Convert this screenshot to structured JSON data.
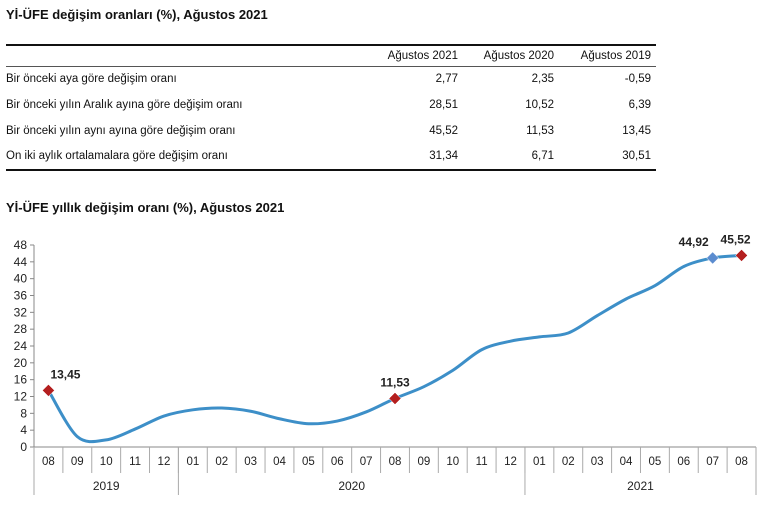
{
  "table": {
    "title": "Yİ-ÜFE değişim oranları (%), Ağustos 2021",
    "headers": [
      "Ağustos 2021",
      "Ağustos 2020",
      "Ağustos 2019"
    ],
    "rows": [
      {
        "label": "Bir önceki aya göre değişim oranı",
        "values": [
          "2,77",
          "2,35",
          "-0,59"
        ]
      },
      {
        "label": "Bir önceki yılın Aralık ayına göre değişim oranı",
        "values": [
          "28,51",
          "10,52",
          "6,39"
        ]
      },
      {
        "label": "Bir önceki yılın aynı ayına göre değişim oranı",
        "values": [
          "45,52",
          "11,53",
          "13,45"
        ]
      },
      {
        "label": "On iki aylık ortalamalara göre değişim oranı",
        "values": [
          "31,34",
          "6,71",
          "30,51"
        ]
      }
    ]
  },
  "chart_data": {
    "type": "line",
    "title": "Yİ-ÜFE yıllık değişim oranı (%), Ağustos 2021",
    "categories": [
      "08",
      "09",
      "10",
      "11",
      "12",
      "01",
      "02",
      "03",
      "04",
      "05",
      "06",
      "07",
      "08",
      "09",
      "10",
      "11",
      "12",
      "01",
      "02",
      "03",
      "04",
      "05",
      "06",
      "07",
      "08"
    ],
    "years": [
      {
        "label": "2019",
        "start": 0,
        "end": 4
      },
      {
        "label": "2020",
        "start": 5,
        "end": 16
      },
      {
        "label": "2021",
        "start": 17,
        "end": 24
      }
    ],
    "values": [
      13.45,
      2.46,
      1.7,
      4.26,
      7.36,
      8.84,
      9.26,
      8.5,
      6.71,
      5.53,
      6.17,
      8.33,
      11.53,
      14.33,
      18.2,
      23.11,
      25.15,
      26.16,
      27.09,
      31.2,
      35.17,
      38.33,
      42.89,
      44.92,
      45.52
    ],
    "ylim": [
      0,
      48
    ],
    "yticks": [
      0,
      4,
      8,
      12,
      16,
      20,
      24,
      28,
      32,
      36,
      40,
      44,
      48
    ],
    "markers": [
      {
        "index": 0,
        "label": "13,45",
        "color": "#b41f1f"
      },
      {
        "index": 12,
        "label": "11,53",
        "color": "#b41f1f"
      },
      {
        "index": 23,
        "label": "44,92",
        "color": "#5b8ccf"
      },
      {
        "index": 24,
        "label": "45,52",
        "color": "#b41f1f"
      }
    ],
    "line_color": "#3d8fc8"
  }
}
